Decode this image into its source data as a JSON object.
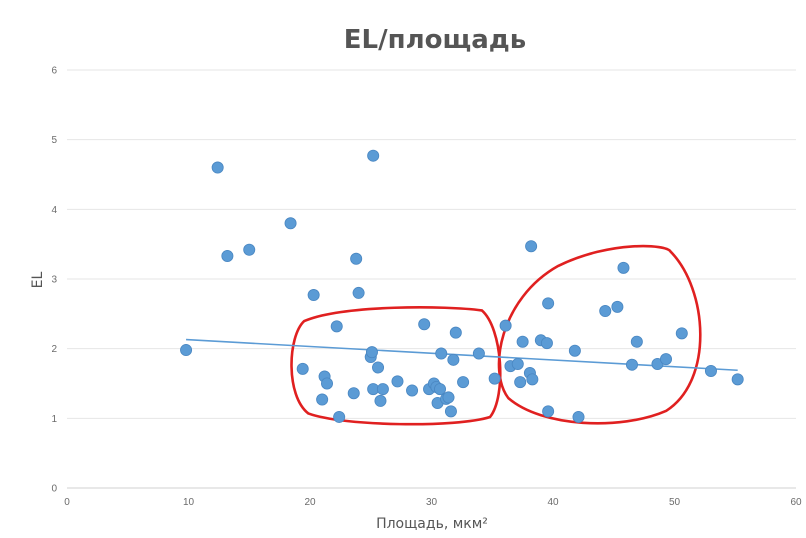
{
  "chart_data": {
    "type": "scatter",
    "title": "EL/площадь",
    "xlabel": "Площадь, мкм²",
    "ylabel": "EL",
    "xlim": [
      0,
      60
    ],
    "ylim": [
      0,
      6
    ],
    "xticks": [
      "0",
      "10",
      "20",
      "30",
      "40",
      "50",
      "60"
    ],
    "yticks": [
      "0",
      "1",
      "2",
      "3",
      "4",
      "5",
      "6"
    ],
    "grid": "horizontal",
    "legend": "none",
    "series": [
      {
        "points": [
          [
            9.8,
            1.98
          ],
          [
            12.4,
            4.6
          ],
          [
            13.2,
            3.33
          ],
          [
            15.0,
            3.42
          ],
          [
            18.4,
            3.8
          ],
          [
            19.4,
            1.71
          ],
          [
            20.3,
            2.77
          ],
          [
            21.0,
            1.27
          ],
          [
            21.2,
            1.6
          ],
          [
            21.4,
            1.5
          ],
          [
            22.2,
            2.32
          ],
          [
            22.4,
            1.02
          ],
          [
            23.6,
            1.36
          ],
          [
            23.8,
            3.29
          ],
          [
            24.0,
            2.8
          ],
          [
            25.0,
            1.88
          ],
          [
            25.1,
            1.95
          ],
          [
            25.2,
            4.77
          ],
          [
            25.2,
            1.42
          ],
          [
            25.6,
            1.73
          ],
          [
            25.8,
            1.25
          ],
          [
            26.0,
            1.42
          ],
          [
            27.2,
            1.53
          ],
          [
            28.4,
            1.4
          ],
          [
            29.4,
            2.35
          ],
          [
            29.8,
            1.42
          ],
          [
            30.2,
            1.5
          ],
          [
            30.4,
            1.45
          ],
          [
            30.5,
            1.22
          ],
          [
            30.7,
            1.42
          ],
          [
            30.8,
            1.93
          ],
          [
            31.2,
            1.28
          ],
          [
            31.4,
            1.3
          ],
          [
            31.6,
            1.1
          ],
          [
            31.8,
            1.84
          ],
          [
            32.0,
            2.23
          ],
          [
            32.6,
            1.52
          ],
          [
            33.9,
            1.93
          ],
          [
            35.2,
            1.57
          ],
          [
            36.1,
            2.33
          ],
          [
            36.5,
            1.75
          ],
          [
            37.1,
            1.78
          ],
          [
            37.3,
            1.52
          ],
          [
            37.5,
            2.1
          ],
          [
            38.1,
            1.65
          ],
          [
            38.2,
            3.47
          ],
          [
            38.3,
            1.56
          ],
          [
            39.0,
            2.12
          ],
          [
            39.5,
            2.08
          ],
          [
            39.6,
            2.65
          ],
          [
            39.6,
            1.1
          ],
          [
            41.8,
            1.97
          ],
          [
            42.1,
            1.02
          ],
          [
            44.3,
            2.54
          ],
          [
            45.3,
            2.6
          ],
          [
            45.8,
            3.16
          ],
          [
            46.5,
            1.77
          ],
          [
            46.9,
            2.1
          ],
          [
            48.6,
            1.78
          ],
          [
            49.3,
            1.85
          ],
          [
            50.6,
            2.22
          ],
          [
            53.0,
            1.68
          ],
          [
            55.2,
            1.56
          ]
        ]
      }
    ],
    "trendline": {
      "type": "linear",
      "x": [
        9.8,
        55.2
      ],
      "y": [
        2.13,
        1.69
      ]
    },
    "annotations": [
      {
        "type": "hand-drawn-outline",
        "color": "#e02020",
        "x_range": [
          18.5,
          35.5
        ],
        "y_range": [
          0.9,
          2.6
        ]
      },
      {
        "type": "hand-drawn-outline",
        "color": "#e02020",
        "x_range": [
          35.3,
          52.4
        ],
        "y_range": [
          0.9,
          3.5
        ]
      }
    ],
    "colors": {
      "points": "#5b9bd5",
      "trendline": "#5b9bd5",
      "outline": "#e02020"
    }
  }
}
